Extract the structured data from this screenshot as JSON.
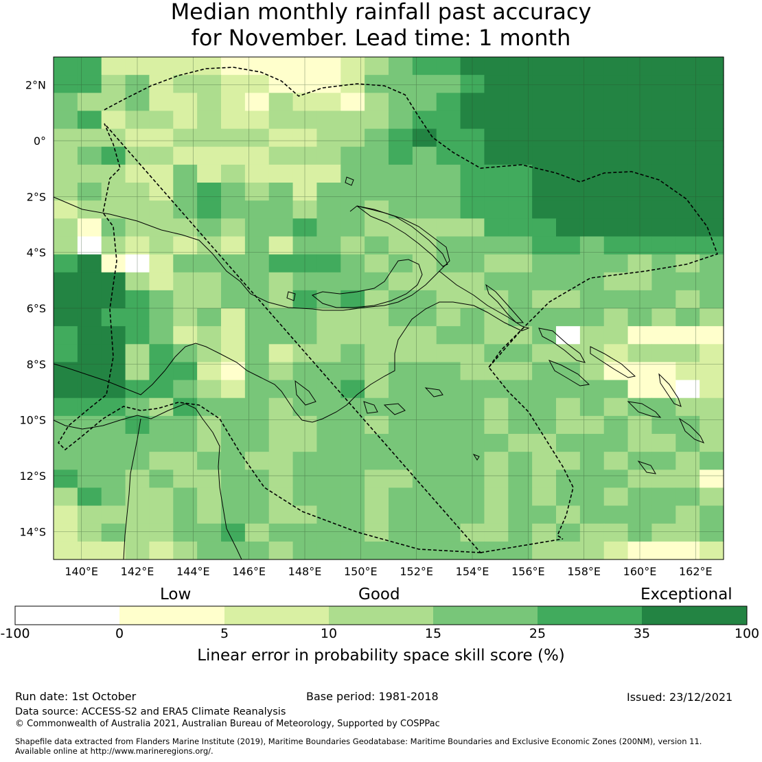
{
  "title": {
    "line1": "Median monthly rainfall past accuracy",
    "line2": "for November. Lead time: 1 month"
  },
  "map": {
    "lon_labels": [
      "140°E",
      "142°E",
      "144°E",
      "146°E",
      "148°E",
      "150°E",
      "152°E",
      "154°E",
      "156°E",
      "158°E",
      "160°E",
      "162°E"
    ],
    "lat_labels": [
      "2°N",
      "0°",
      "2°S",
      "4°S",
      "6°S",
      "8°S",
      "10°S",
      "12°S",
      "14°S"
    ],
    "lon_range": [
      139,
      163
    ],
    "lat_range": [
      -15,
      3
    ],
    "grid_resolution_deg": 0.833
  },
  "colorbar": {
    "categories": [
      "Low",
      "Good",
      "Exceptional"
    ],
    "ticks": [
      "-100",
      "0",
      "5",
      "10",
      "15",
      "25",
      "35",
      "100"
    ],
    "colors": [
      "#ffffff",
      "#ffffcc",
      "#d9f0a3",
      "#addd8e",
      "#78c679",
      "#41ab5d",
      "#238443"
    ],
    "label": "Linear error in probability space skill score (%)"
  },
  "footer": {
    "run_date": "Run date: 1st October",
    "base_period": "Base period: 1981-2018",
    "issued": "Issued: 23/12/2021",
    "data_source": "Data source: ACCESS-S2 and ERA5 Climate Reanalysis",
    "copyright": "© Commonwealth of Australia 2021, Australian Bureau of Meteorology, Supported by COSPPac",
    "shapefile_line1": "Shapefile data extracted from Flanders Marine Institute (2019), Maritime Boundaries Geodatabase: Maritime Boundaries and Exclusive Economic Zones (200NM), version 11.",
    "shapefile_line2": "Available online at http://www.marineregions.org/."
  }
}
